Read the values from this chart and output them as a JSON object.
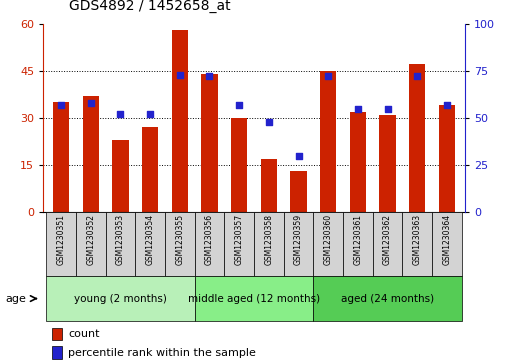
{
  "title": "GDS4892 / 1452658_at",
  "samples": [
    "GSM1230351",
    "GSM1230352",
    "GSM1230353",
    "GSM1230354",
    "GSM1230355",
    "GSM1230356",
    "GSM1230357",
    "GSM1230358",
    "GSM1230359",
    "GSM1230360",
    "GSM1230361",
    "GSM1230362",
    "GSM1230363",
    "GSM1230364"
  ],
  "counts": [
    35,
    37,
    23,
    27,
    58,
    44,
    30,
    17,
    13,
    45,
    32,
    31,
    47,
    34
  ],
  "percentiles": [
    57,
    58,
    52,
    52,
    73,
    72,
    57,
    48,
    30,
    72,
    55,
    55,
    72,
    57
  ],
  "bar_color": "#cc2200",
  "dot_color": "#2222cc",
  "ylim_left": [
    0,
    60
  ],
  "ylim_right": [
    0,
    100
  ],
  "yticks_left": [
    0,
    15,
    30,
    45,
    60
  ],
  "yticks_right": [
    0,
    25,
    50,
    75,
    100
  ],
  "groups": [
    {
      "label": "young (2 months)",
      "start": 0,
      "end": 5
    },
    {
      "label": "middle aged (12 months)",
      "start": 5,
      "end": 9
    },
    {
      "label": "aged (24 months)",
      "start": 9,
      "end": 14
    }
  ],
  "group_colors": [
    "#b8f0b8",
    "#88ee88",
    "#55cc55"
  ],
  "age_label": "age",
  "legend_count": "count",
  "legend_percentile": "percentile rank within the sample",
  "bar_width": 0.55,
  "tick_label_color_left": "#cc2200",
  "tick_label_color_right": "#2222cc",
  "title_fontsize": 10,
  "tick_fontsize": 8,
  "sample_label_fontsize": 5.5,
  "group_label_fontsize": 7.5,
  "legend_fontsize": 8
}
